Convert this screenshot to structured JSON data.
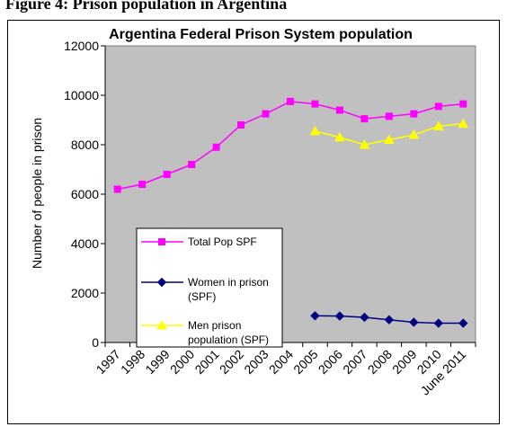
{
  "caption": "Figure 4: Prison population in Argentina",
  "chart_data": {
    "type": "line",
    "title": "Argentina Federal Prison System population",
    "ylabel": "Number of people in prison",
    "xlabel": "",
    "ylim": [
      0,
      12000
    ],
    "y_ticks": [
      "0",
      "2000",
      "4000",
      "6000",
      "8000",
      "10000",
      "12000"
    ],
    "categories": [
      "1997",
      "1998",
      "1999",
      "2000",
      "2001",
      "2002",
      "2003",
      "2004",
      "2005",
      "2006",
      "2007",
      "2008",
      "2009",
      "2010",
      "June 2011"
    ],
    "grid": false,
    "legend_placement": "bottom-left",
    "series": [
      {
        "name": "Total Pop SPF",
        "color": "#ff00ff",
        "marker": "square",
        "values": [
          6200,
          6400,
          6800,
          7200,
          7900,
          8800,
          9250,
          9750,
          9650,
          9400,
          9050,
          9150,
          9250,
          9550,
          9650
        ]
      },
      {
        "name": "Women in prison (SPF)",
        "color": "#000080",
        "marker": "diamond",
        "values": [
          null,
          null,
          null,
          null,
          null,
          null,
          null,
          null,
          1080,
          1070,
          1020,
          920,
          820,
          780,
          780
        ]
      },
      {
        "name": "Men prison population (SPF)",
        "color": "#ffff00",
        "marker": "triangle",
        "values": [
          null,
          null,
          null,
          null,
          null,
          null,
          null,
          null,
          8550,
          8300,
          8000,
          8200,
          8400,
          8750,
          8850
        ]
      }
    ],
    "legend_labels": [
      [
        "Total Pop SPF"
      ],
      [
        "Women in prison",
        "(SPF)"
      ],
      [
        "Men prison",
        "population (SPF)"
      ]
    ],
    "plot_background": "#c0c0c0"
  }
}
